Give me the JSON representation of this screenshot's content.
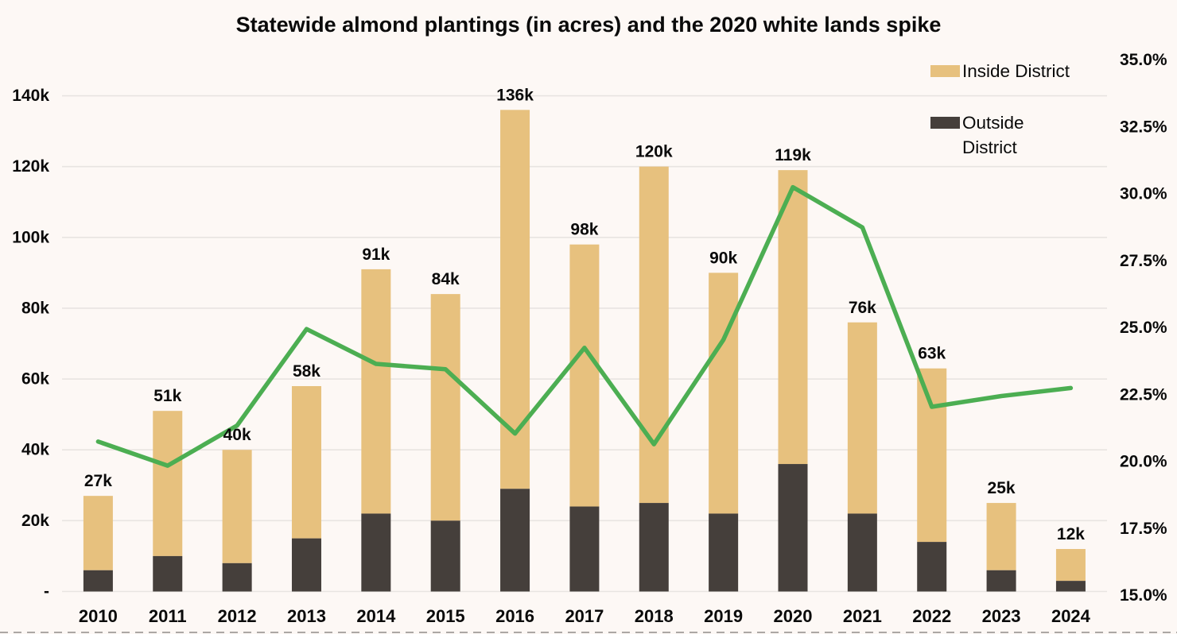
{
  "title": "Statewide almond plantings (in acres) and the 2020 white lands spike",
  "legend": {
    "items": [
      {
        "label": "Inside District",
        "color": "#E7C17E"
      },
      {
        "label": "Outside District",
        "color": "#453F3B"
      }
    ]
  },
  "left_axis": {
    "tick_labels": [
      "140k",
      "120k",
      "100k",
      "80k",
      "60k",
      "40k",
      "20k",
      "-"
    ],
    "tick_values_k": [
      140,
      120,
      100,
      80,
      60,
      40,
      20,
      0
    ]
  },
  "right_axis": {
    "tick_labels": [
      "35.0%",
      "32.5%",
      "30.0%",
      "27.5%",
      "25.0%",
      "22.5%",
      "20.0%",
      "17.5%",
      "15.0%"
    ],
    "tick_values_pct": [
      35,
      32.5,
      30,
      27.5,
      25,
      22.5,
      20,
      17.5,
      15
    ]
  },
  "chart_data": {
    "type": "bar",
    "subtype": "stacked-bars-with-percent-line",
    "title": "Statewide almond plantings (in acres) and the 2020 white lands spike",
    "categories": [
      "2010",
      "2011",
      "2012",
      "2013",
      "2014",
      "2015",
      "2016",
      "2017",
      "2018",
      "2019",
      "2020",
      "2021",
      "2022",
      "2023",
      "2024"
    ],
    "bar_value_labels": [
      "27k",
      "51k",
      "40k",
      "58k",
      "91k",
      "84k",
      "136k",
      "98k",
      "120k",
      "90k",
      "119k",
      "76k",
      "63k",
      "25k",
      "12k"
    ],
    "totals_k": [
      27,
      51,
      40,
      58,
      91,
      84,
      136,
      98,
      120,
      90,
      119,
      76,
      63,
      25,
      12
    ],
    "series": [
      {
        "name": "Outside District",
        "stack_position": "bottom",
        "color": "#453F3B",
        "values_k": [
          6,
          10,
          8,
          15,
          22,
          20,
          29,
          24,
          25,
          22,
          36,
          22,
          14,
          6,
          3
        ]
      },
      {
        "name": "Inside District",
        "stack_position": "top",
        "color": "#E7C17E",
        "values_k": [
          21,
          41,
          32,
          43,
          69,
          64,
          107,
          74,
          95,
          68,
          83,
          54,
          49,
          19,
          9
        ]
      }
    ],
    "line_series": {
      "axis": "right",
      "color": "#4CAE52",
      "values_pct": [
        20.6,
        19.7,
        21.2,
        24.8,
        23.5,
        23.3,
        20.9,
        24.1,
        20.5,
        24.4,
        30.1,
        28.6,
        21.9,
        22.3,
        22.6
      ]
    },
    "left_ylim_k": [
      0,
      140
    ],
    "right_ylim_pct": [
      15,
      35
    ],
    "grid": "horizontal"
  },
  "colors": {
    "background": "#FDF8F5",
    "grid": "#E8E4E1",
    "text": "#0a0a0a",
    "dashed_border": "#ABA7A4"
  }
}
